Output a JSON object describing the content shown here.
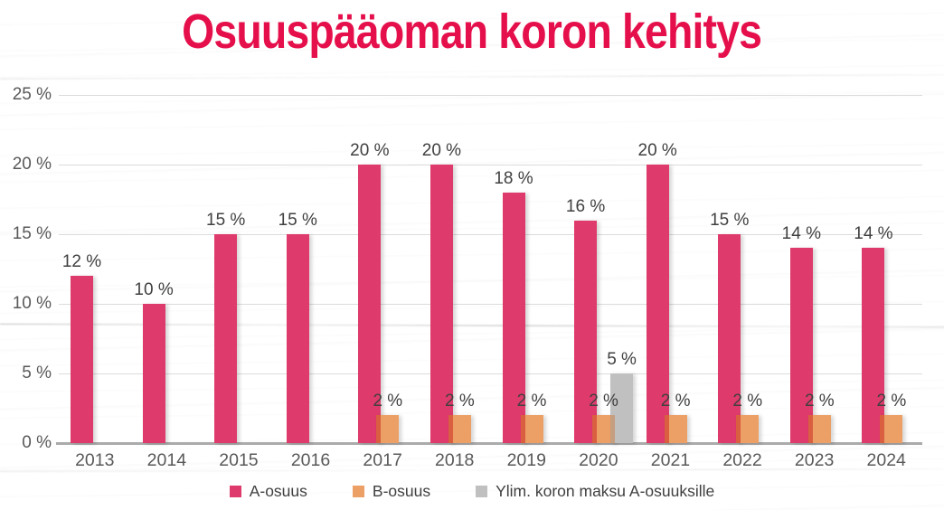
{
  "title": {
    "text": "Osuuspääoman koron kehitys",
    "color": "#e50f4b"
  },
  "chart_data": {
    "type": "bar",
    "title": "Osuuspääoman koron kehitys",
    "categories": [
      "2013",
      "2014",
      "2015",
      "2016",
      "2017",
      "2018",
      "2019",
      "2020",
      "2021",
      "2022",
      "2023",
      "2024"
    ],
    "series": [
      {
        "name": "A-osuus",
        "color": "#de3a6b",
        "overlap_edge_color": null,
        "values": [
          12,
          10,
          15,
          15,
          20,
          20,
          18,
          16,
          20,
          15,
          14,
          14
        ]
      },
      {
        "name": "B-osuus",
        "color": "#eca066",
        "overlap_edge_color": "#d95f40",
        "values": [
          null,
          null,
          null,
          null,
          2,
          2,
          2,
          2,
          2,
          2,
          2,
          2
        ]
      },
      {
        "name": "Ylim. koron maksu A-osuuksille",
        "color": "#c1c0c0",
        "overlap_edge_color": "#c69e80",
        "values": [
          null,
          null,
          null,
          null,
          null,
          null,
          null,
          5,
          null,
          null,
          null,
          null
        ]
      }
    ],
    "value_label_format": "{v} %",
    "y_ticks": [
      0,
      5,
      10,
      15,
      20,
      25
    ],
    "y_tick_format": "{v} %",
    "ylim": [
      0,
      25
    ],
    "xlabel": "",
    "ylabel": "",
    "grid": true,
    "legend_position": "bottom",
    "colors": {
      "value_label": "#404040",
      "axis_tick_label": "#595959",
      "gridline": "#dcdcdc",
      "axis_line": "#ababab"
    }
  }
}
